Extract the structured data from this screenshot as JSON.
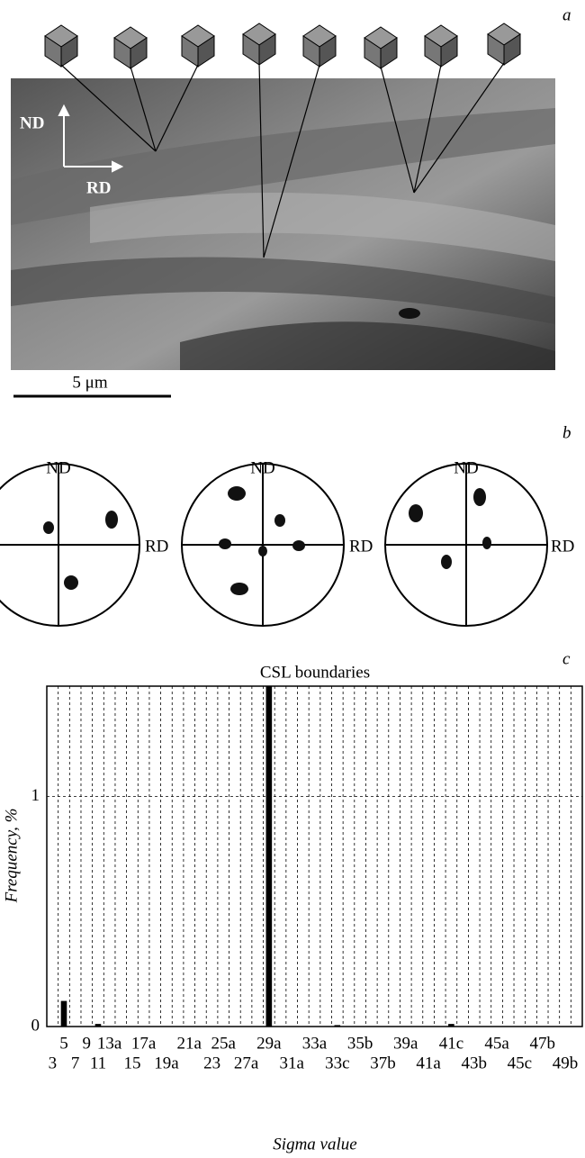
{
  "panel_a": {
    "label": "a",
    "nd": "ND",
    "rd": "RD",
    "scale_bar": "5 μm"
  },
  "panel_b": {
    "label": "b",
    "figures": [
      {
        "nd": "ND",
        "rd": "RD"
      },
      {
        "nd": "ND",
        "rd": "RD"
      },
      {
        "nd": "ND",
        "rd": "RD"
      }
    ]
  },
  "chart_data": {
    "type": "bar",
    "panel_label": "c",
    "title": "CSL boundaries",
    "x_label": "Sigma value",
    "y_label": "Frequency, %",
    "categories": [
      "3",
      "5",
      "7",
      "9",
      "11",
      "13a",
      null,
      "15",
      "17a",
      null,
      "19a",
      null,
      "21a",
      null,
      "23",
      "25a",
      null,
      "27a",
      null,
      "29a",
      null,
      "31a",
      null,
      "33a",
      null,
      "33c",
      null,
      "35b",
      null,
      "37b",
      null,
      "39a",
      null,
      "41a",
      null,
      "41c",
      null,
      "43b",
      null,
      "45a",
      null,
      "45c",
      null,
      "47b",
      null,
      "49b",
      null
    ],
    "values": [
      0,
      0.11,
      0,
      0,
      0.01,
      0,
      0,
      0,
      0,
      0,
      0,
      0,
      0,
      0,
      0,
      0,
      0,
      0,
      0,
      1.48,
      0,
      0,
      0,
      0,
      0,
      0.005,
      0,
      0,
      0,
      0,
      0,
      0,
      0,
      0,
      0,
      0.01,
      0,
      0,
      0,
      0,
      0,
      0,
      0,
      0,
      0,
      0,
      0
    ],
    "color": "#000000",
    "ylim": [
      0,
      1.48
    ],
    "yticks": [
      0,
      1
    ],
    "grid": true
  }
}
